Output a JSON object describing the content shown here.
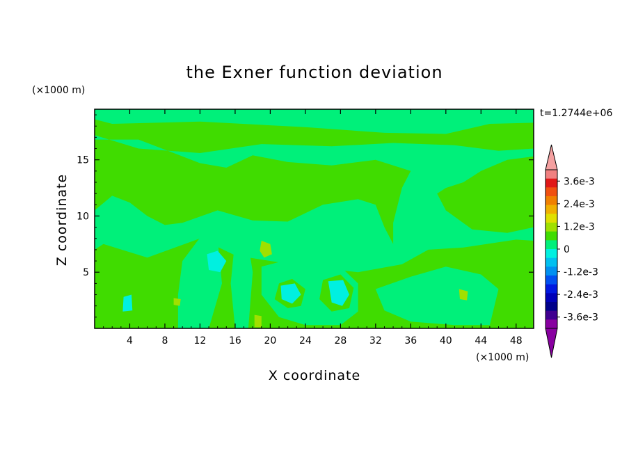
{
  "chart_data": {
    "type": "heatmap",
    "title": "the Exner function deviation",
    "xlabel": "X coordinate",
    "ylabel": "Z coordinate",
    "x_unit": "(×1000 m)",
    "y_unit": "(×1000 m)",
    "time_label": "t=1.2744e+06",
    "xlim": [
      0,
      50
    ],
    "ylim": [
      0,
      19.5
    ],
    "x_ticks": [
      "4",
      "8",
      "12",
      "16",
      "20",
      "24",
      "28",
      "32",
      "36",
      "40",
      "44",
      "48"
    ],
    "x_tick_values": [
      4,
      8,
      12,
      16,
      20,
      24,
      28,
      32,
      36,
      40,
      44,
      48
    ],
    "y_ticks": [
      "5",
      "10",
      "15"
    ],
    "y_tick_values": [
      5,
      10,
      15
    ],
    "colorbar": {
      "labels": [
        "3.6e-3",
        "2.4e-3",
        "1.2e-3",
        "0",
        "-1.2e-3",
        "-2.4e-3",
        "-3.6e-3"
      ],
      "label_values": [
        0.0036,
        0.0024,
        0.0012,
        0,
        -0.0012,
        -0.0024,
        -0.0036
      ],
      "levels_top_to_bottom": [
        "#f08080",
        "#e01818",
        "#f05010",
        "#f08000",
        "#f0b000",
        "#e0e000",
        "#a0e000",
        "#40dc00",
        "#00f07a",
        "#00f0e0",
        "#00c0f0",
        "#0090f0",
        "#0050f0",
        "#0018e0",
        "#0000b8",
        "#00008a",
        "#400090",
        "#8800a0"
      ],
      "over_color": "#f4a0a0",
      "under_color": "#8800a0"
    },
    "field_colors": {
      "near_zero_positive": "#40dc00",
      "near_zero_negative": "#00f07a",
      "small_positive": "#a0e000",
      "small_negative": "#00f0e0"
    },
    "regions": [
      {
        "value_class": "near_zero_negative",
        "points": [
          [
            0,
            19.5
          ],
          [
            50,
            19.5
          ],
          [
            50,
            18.3
          ],
          [
            45,
            18.2
          ],
          [
            40,
            17.3
          ],
          [
            33,
            17.4
          ],
          [
            24,
            17.9
          ],
          [
            12,
            18.4
          ],
          [
            2,
            18.2
          ],
          [
            0,
            18.6
          ]
        ]
      },
      {
        "value_class": "near_zero_negative",
        "points": [
          [
            0,
            17.2
          ],
          [
            5,
            16.0
          ],
          [
            12,
            15.6
          ],
          [
            19,
            16.4
          ],
          [
            27,
            16.2
          ],
          [
            34,
            16.5
          ],
          [
            41,
            16.3
          ],
          [
            46,
            15.8
          ],
          [
            50,
            16.0
          ],
          [
            50,
            15.3
          ],
          [
            47,
            15.0
          ],
          [
            44,
            14.0
          ],
          [
            42,
            13.0
          ],
          [
            40,
            12.5
          ],
          [
            39,
            12.0
          ],
          [
            40,
            10.5
          ],
          [
            43,
            8.8
          ],
          [
            47,
            8.5
          ],
          [
            50,
            9.0
          ],
          [
            50,
            7.8
          ],
          [
            48,
            7.9
          ],
          [
            42,
            7.2
          ],
          [
            38,
            7.0
          ],
          [
            35,
            5.7
          ],
          [
            30,
            5.0
          ],
          [
            24,
            5.5
          ],
          [
            16,
            6.5
          ],
          [
            12,
            8.0
          ],
          [
            6,
            6.3
          ],
          [
            1,
            7.5
          ],
          [
            0,
            7.0
          ],
          [
            0,
            10.5
          ],
          [
            2,
            11.8
          ],
          [
            4,
            11.2
          ],
          [
            6,
            10.0
          ],
          [
            8,
            9.2
          ],
          [
            10,
            9.4
          ],
          [
            14,
            10.5
          ],
          [
            18,
            9.6
          ],
          [
            22,
            9.5
          ],
          [
            26,
            11.0
          ],
          [
            30,
            11.5
          ],
          [
            32,
            11.0
          ],
          [
            33,
            9.0
          ],
          [
            34,
            7.5
          ],
          [
            34,
            9.4
          ],
          [
            35,
            12.5
          ],
          [
            36,
            14.0
          ],
          [
            32,
            15.0
          ],
          [
            27,
            14.5
          ],
          [
            22,
            14.8
          ],
          [
            18,
            15.4
          ],
          [
            15,
            14.3
          ],
          [
            12,
            14.7
          ],
          [
            5,
            16.8
          ],
          [
            0,
            16.8
          ]
        ]
      },
      {
        "value_class": "near_zero_negative",
        "points": [
          [
            10,
            6.0
          ],
          [
            12.5,
            8.6
          ],
          [
            14,
            8.0
          ],
          [
            14.5,
            4.0
          ],
          [
            13,
            0
          ],
          [
            9.5,
            0
          ],
          [
            9.5,
            3.0
          ]
        ]
      },
      {
        "value_class": "near_zero_negative",
        "points": [
          [
            16,
            8.0
          ],
          [
            17.5,
            7.5
          ],
          [
            18,
            5.0
          ],
          [
            17.5,
            0
          ],
          [
            16,
            0
          ],
          [
            15.5,
            4.0
          ]
        ]
      },
      {
        "value_class": "near_zero_negative",
        "points": [
          [
            19,
            5.5
          ],
          [
            22.5,
            6.2
          ],
          [
            25,
            5.8
          ],
          [
            28,
            5.5
          ],
          [
            30,
            4.0
          ],
          [
            30,
            1.5
          ],
          [
            28,
            0.3
          ],
          [
            24,
            0.3
          ],
          [
            21,
            1.0
          ],
          [
            19,
            3.0
          ]
        ]
      },
      {
        "value_class": "near_zero_negative",
        "points": [
          [
            32,
            3.5
          ],
          [
            36,
            4.6
          ],
          [
            40,
            5.5
          ],
          [
            44,
            4.8
          ],
          [
            46,
            3.5
          ],
          [
            45,
            0.3
          ],
          [
            41,
            0.3
          ],
          [
            36,
            0.6
          ],
          [
            33,
            1.6
          ]
        ]
      },
      {
        "value_class": "near_zero_positive",
        "points": [
          [
            21,
            4.0
          ],
          [
            22.5,
            4.4
          ],
          [
            24,
            3.5
          ],
          [
            23.5,
            2.0
          ],
          [
            22,
            1.8
          ],
          [
            20.5,
            2.6
          ]
        ]
      },
      {
        "value_class": "near_zero_positive",
        "points": [
          [
            26,
            4.3
          ],
          [
            28,
            4.8
          ],
          [
            29.5,
            3.6
          ],
          [
            29,
            1.8
          ],
          [
            27,
            1.5
          ],
          [
            25.6,
            2.6
          ]
        ]
      },
      {
        "value_class": "small_negative",
        "points": [
          [
            21.2,
            3.8
          ],
          [
            22.8,
            4.0
          ],
          [
            23.5,
            3.0
          ],
          [
            22.5,
            2.2
          ],
          [
            21.3,
            2.6
          ]
        ]
      },
      {
        "value_class": "small_negative",
        "points": [
          [
            26.6,
            4.2
          ],
          [
            28.3,
            4.3
          ],
          [
            29,
            3.0
          ],
          [
            28.2,
            2.0
          ],
          [
            27,
            2.3
          ]
        ]
      },
      {
        "value_class": "small_negative",
        "points": [
          [
            12.8,
            6.6
          ],
          [
            14,
            6.9
          ],
          [
            15,
            6.0
          ],
          [
            14.3,
            5.0
          ],
          [
            13,
            5.2
          ]
        ]
      },
      {
        "value_class": "small_negative",
        "points": [
          [
            3.3,
            2.8
          ],
          [
            4.2,
            3.0
          ],
          [
            4.3,
            1.6
          ],
          [
            3.2,
            1.5
          ]
        ]
      },
      {
        "value_class": "small_positive",
        "points": [
          [
            19,
            7.8
          ],
          [
            20,
            7.5
          ],
          [
            20.2,
            6.6
          ],
          [
            19.3,
            6.3
          ],
          [
            18.8,
            6.9
          ]
        ]
      },
      {
        "value_class": "small_positive",
        "points": [
          [
            41.5,
            3.5
          ],
          [
            42.5,
            3.3
          ],
          [
            42.4,
            2.5
          ],
          [
            41.6,
            2.6
          ]
        ]
      },
      {
        "value_class": "small_positive",
        "points": [
          [
            9,
            2.7
          ],
          [
            9.8,
            2.6
          ],
          [
            9.7,
            2.0
          ],
          [
            9.0,
            2.1
          ]
        ]
      },
      {
        "value_class": "small_positive",
        "points": [
          [
            18.2,
            1.2
          ],
          [
            19,
            1.1
          ],
          [
            19,
            0.1
          ],
          [
            18.2,
            0.1
          ]
        ]
      }
    ]
  }
}
